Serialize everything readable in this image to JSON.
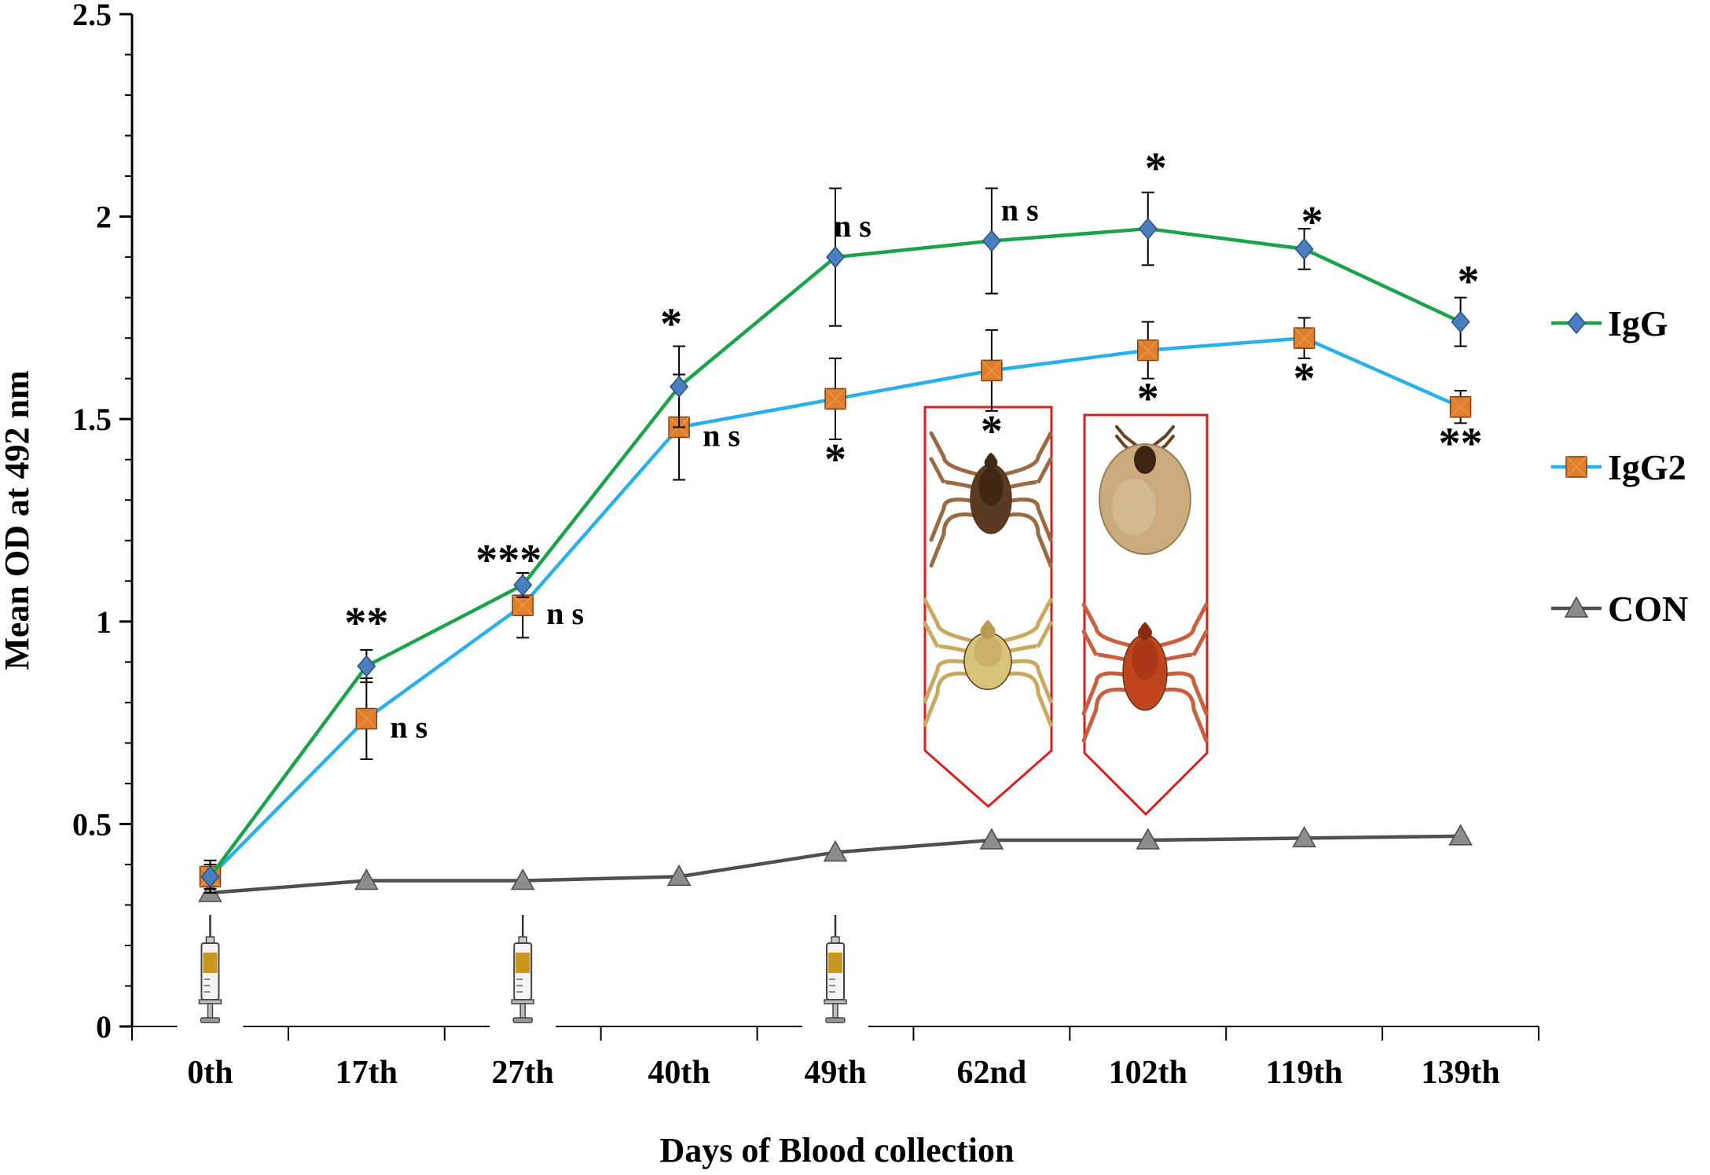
{
  "chart_data": {
    "type": "line",
    "title": "",
    "xlabel": "Days of Blood collection",
    "ylabel": "Mean OD at 492 nm",
    "categories": [
      "0th",
      "17th",
      "27th",
      "40th",
      "49th",
      "62nd",
      "102th",
      "119th",
      "139th"
    ],
    "ylim": [
      0,
      2.5
    ],
    "yticks": [
      "0",
      "0.5",
      "1",
      "1.5",
      "2",
      "2.5"
    ],
    "ytick_values": [
      0,
      0.5,
      1,
      1.5,
      2,
      2.5
    ],
    "grid": false,
    "legend_position": "right",
    "series": [
      {
        "name": "IgG",
        "color": "#1aa34a",
        "marker": "diamond",
        "marker_color": "#4a7fbf",
        "values": [
          0.37,
          0.89,
          1.09,
          1.58,
          1.9,
          1.94,
          1.97,
          1.92,
          1.74
        ],
        "errors": [
          0.04,
          0.04,
          0.03,
          0.1,
          0.17,
          0.13,
          0.09,
          0.05,
          0.06
        ],
        "annotations": [
          "",
          "**",
          "***",
          "*",
          "n s",
          "n s",
          "*",
          "*",
          "*"
        ]
      },
      {
        "name": "IgG2",
        "color": "#29b0e8",
        "marker": "square",
        "marker_color": "#e07f2e",
        "values": [
          0.37,
          0.76,
          1.04,
          1.48,
          1.55,
          1.62,
          1.67,
          1.7,
          1.53
        ],
        "errors": [
          0.03,
          0.1,
          0.08,
          0.13,
          0.1,
          0.1,
          0.07,
          0.05,
          0.04
        ],
        "annotations": [
          "",
          "n s",
          "n s",
          "n s",
          "*",
          "*",
          "*",
          "*",
          "**"
        ]
      },
      {
        "name": "CON",
        "color": "#505050",
        "marker": "triangle",
        "marker_color": "#8c8c8c",
        "values": [
          0.33,
          0.36,
          0.36,
          0.37,
          0.43,
          0.46,
          0.46,
          0.465,
          0.47
        ],
        "errors": [],
        "annotations": []
      }
    ]
  },
  "figure": {
    "syringe_icon": "syringe-icon",
    "syringe_days": [
      "0th",
      "27th",
      "49th"
    ],
    "tick_icons": [
      "tick-icon",
      "tick-icon"
    ],
    "pointer_color": "#d62020"
  }
}
